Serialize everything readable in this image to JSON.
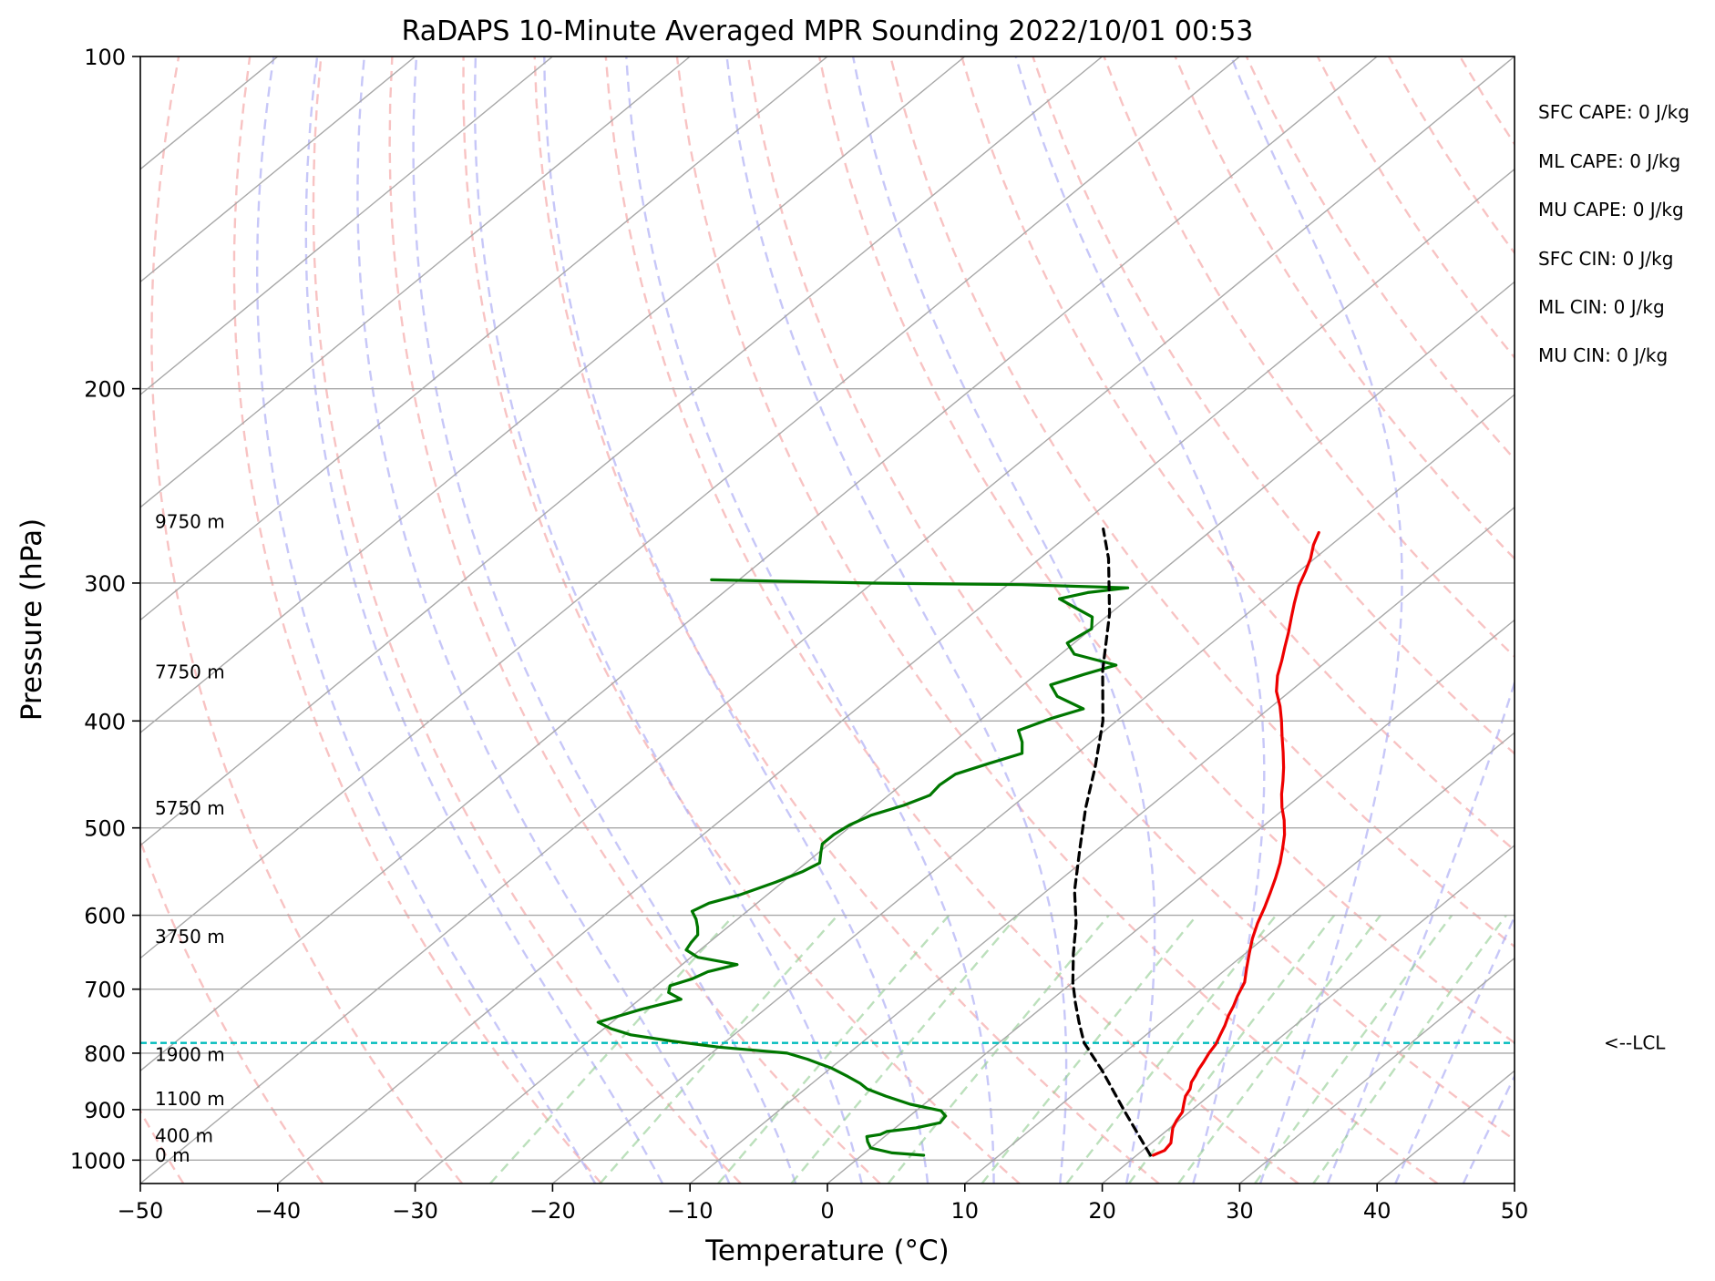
{
  "chart_data": {
    "type": "line",
    "title": "RaDAPS 10-Minute Averaged MPR Sounding 2022/10/01 00:53",
    "xlabel": "Temperature (°C)",
    "ylabel": "Pressure (hPa)",
    "xlim": [
      -50,
      50
    ],
    "ylim": [
      1050,
      100
    ],
    "y_scale": "log",
    "x_ticks": [
      -50,
      -40,
      -30,
      -20,
      -10,
      0,
      10,
      20,
      30,
      40,
      50
    ],
    "x_tick_labels": [
      "−50",
      "−40",
      "−30",
      "−20",
      "−10",
      "0",
      "10",
      "20",
      "30",
      "40",
      "50"
    ],
    "y_ticks": [
      100,
      200,
      300,
      400,
      500,
      600,
      700,
      800,
      900,
      1000
    ],
    "y_tick_labels": [
      "100",
      "200",
      "300",
      "400",
      "500",
      "600",
      "700",
      "800",
      "900",
      "1000"
    ],
    "grid": true,
    "skew": 1,
    "colors": {
      "temperature": "#ee0000",
      "dewpoint": "#007700",
      "parcel": "#000000",
      "lcl": "#00bcbc",
      "isotherm": "#a8a8a8",
      "dry_adiabat": "#f4a3a3",
      "moist_adiabat": "#a9a9f5",
      "mixing_ratio": "#8fcc8f"
    },
    "series": [
      {
        "id": "temperature",
        "points": [
          [
            21.2,
            990
          ],
          [
            21.6,
            980
          ],
          [
            21.4,
            965
          ],
          [
            20.8,
            950
          ],
          [
            20.2,
            935
          ],
          [
            19.8,
            920
          ],
          [
            19.5,
            905
          ],
          [
            18.9,
            890
          ],
          [
            18.3,
            875
          ],
          [
            18.0,
            862
          ],
          [
            17.5,
            850
          ],
          [
            17.2,
            838
          ],
          [
            16.9,
            828
          ],
          [
            16.6,
            815
          ],
          [
            16.2,
            800
          ],
          [
            15.9,
            785
          ],
          [
            15.4,
            770
          ],
          [
            14.9,
            755
          ],
          [
            14.3,
            740
          ],
          [
            13.8,
            725
          ],
          [
            13.2,
            710
          ],
          [
            12.5,
            690
          ],
          [
            11.4,
            670
          ],
          [
            10.3,
            650
          ],
          [
            9.2,
            630
          ],
          [
            8.2,
            610
          ],
          [
            7.3,
            590
          ],
          [
            6.4,
            572
          ],
          [
            5.5,
            555
          ],
          [
            4.5,
            538
          ],
          [
            3.4,
            522
          ],
          [
            2.3,
            507
          ],
          [
            1.0,
            492
          ],
          [
            -0.3,
            479
          ],
          [
            -1.5,
            466
          ],
          [
            -2.6,
            453
          ],
          [
            -3.7,
            441
          ],
          [
            -5.1,
            427
          ],
          [
            -6.6,
            413
          ],
          [
            -8.0,
            400
          ],
          [
            -9.4,
            388
          ],
          [
            -11.0,
            376
          ],
          [
            -12.3,
            364
          ],
          [
            -13.3,
            353
          ],
          [
            -14.3,
            343
          ],
          [
            -15.3,
            333
          ],
          [
            -16.5,
            322
          ],
          [
            -17.5,
            313
          ],
          [
            -18.7,
            302
          ],
          [
            -19.5,
            293
          ],
          [
            -20.3,
            285
          ],
          [
            -21.3,
            277
          ],
          [
            -22.0,
            270
          ]
        ]
      },
      {
        "id": "dewpoint",
        "points": [
          [
            4.5,
            990
          ],
          [
            2.0,
            985
          ],
          [
            0.0,
            975
          ],
          [
            -0.8,
            962
          ],
          [
            -1.3,
            952
          ],
          [
            -0.5,
            948
          ],
          [
            -0.3,
            942
          ],
          [
            1.5,
            935
          ],
          [
            2.8,
            925
          ],
          [
            2.6,
            912
          ],
          [
            1.8,
            902
          ],
          [
            -1.0,
            890
          ],
          [
            -3.5,
            875
          ],
          [
            -5.5,
            862
          ],
          [
            -6.5,
            852
          ],
          [
            -8.0,
            840
          ],
          [
            -10.0,
            825
          ],
          [
            -12.5,
            810
          ],
          [
            -14.5,
            800
          ],
          [
            -20.0,
            790
          ],
          [
            -24.0,
            780
          ],
          [
            -27.5,
            770
          ],
          [
            -29.5,
            760
          ],
          [
            -31.0,
            750
          ],
          [
            -30.0,
            740
          ],
          [
            -29.0,
            730
          ],
          [
            -27.0,
            715
          ],
          [
            -28.5,
            705
          ],
          [
            -29.0,
            695
          ],
          [
            -28.0,
            685
          ],
          [
            -27.5,
            675
          ],
          [
            -26.0,
            665
          ],
          [
            -29.5,
            655
          ],
          [
            -31.0,
            645
          ],
          [
            -31.3,
            635
          ],
          [
            -31.5,
            625
          ],
          [
            -32.2,
            615
          ],
          [
            -33.0,
            605
          ],
          [
            -34.0,
            595
          ],
          [
            -33.5,
            585
          ],
          [
            -32.0,
            575
          ],
          [
            -30.5,
            560
          ],
          [
            -29.5,
            548
          ],
          [
            -29.0,
            538
          ],
          [
            -29.8,
            527
          ],
          [
            -30.5,
            517
          ],
          [
            -30.5,
            507
          ],
          [
            -30.2,
            497
          ],
          [
            -29.5,
            487
          ],
          [
            -28.0,
            477
          ],
          [
            -27.0,
            467
          ],
          [
            -27.2,
            457
          ],
          [
            -27.0,
            447
          ],
          [
            -25.5,
            437
          ],
          [
            -24.0,
            428
          ],
          [
            -25.0,
            418
          ],
          [
            -26.3,
            408
          ],
          [
            -25.0,
            398
          ],
          [
            -23.5,
            390
          ],
          [
            -26.5,
            380
          ],
          [
            -28.0,
            371
          ],
          [
            -26.5,
            363
          ],
          [
            -25.0,
            356
          ],
          [
            -29.0,
            348
          ],
          [
            -30.5,
            340
          ],
          [
            -30.0,
            330
          ],
          [
            -31.0,
            322
          ],
          [
            -33.0,
            316
          ],
          [
            -35.0,
            310
          ],
          [
            -33.5,
            306
          ],
          [
            -31.0,
            303
          ],
          [
            -39.0,
            301
          ],
          [
            -50.0,
            300
          ],
          [
            -62.0,
            298
          ]
        ]
      },
      {
        "id": "parcel",
        "points": [
          [
            21.0,
            990
          ],
          [
            15.0,
            900
          ],
          [
            10.0,
            830
          ],
          [
            6.2,
            783
          ],
          [
            4.0,
            750
          ],
          [
            2.0,
            720
          ],
          [
            0.0,
            690
          ],
          [
            -2.5,
            650
          ],
          [
            -5.0,
            610
          ],
          [
            -8.0,
            570
          ],
          [
            -11.5,
            520
          ],
          [
            -14.5,
            480
          ],
          [
            -17.5,
            440
          ],
          [
            -21.0,
            400
          ],
          [
            -25.5,
            360
          ],
          [
            -30.0,
            320
          ],
          [
            -35.0,
            285
          ],
          [
            -38.0,
            268
          ]
        ]
      }
    ],
    "lcl": {
      "pressure": 783,
      "label": "<--LCL"
    },
    "height_labels": [
      {
        "pressure": 990,
        "text": "0 m"
      },
      {
        "pressure": 950,
        "text": "400 m"
      },
      {
        "pressure": 880,
        "text": "1100 m"
      },
      {
        "pressure": 802,
        "text": "1900 m"
      },
      {
        "pressure": 627,
        "text": "3750 m"
      },
      {
        "pressure": 480,
        "text": "5750 m"
      },
      {
        "pressure": 361,
        "text": "7750 m"
      },
      {
        "pressure": 264,
        "text": "9750 m"
      }
    ],
    "annotations": [
      "SFC CAPE: 0 J/kg",
      "ML CAPE: 0 J/kg",
      "MU CAPE: 0 J/kg",
      "SFC CIN: 0 J/kg",
      "ML CIN: 0 J/kg",
      "MU CIN: 0 J/kg"
    ]
  }
}
